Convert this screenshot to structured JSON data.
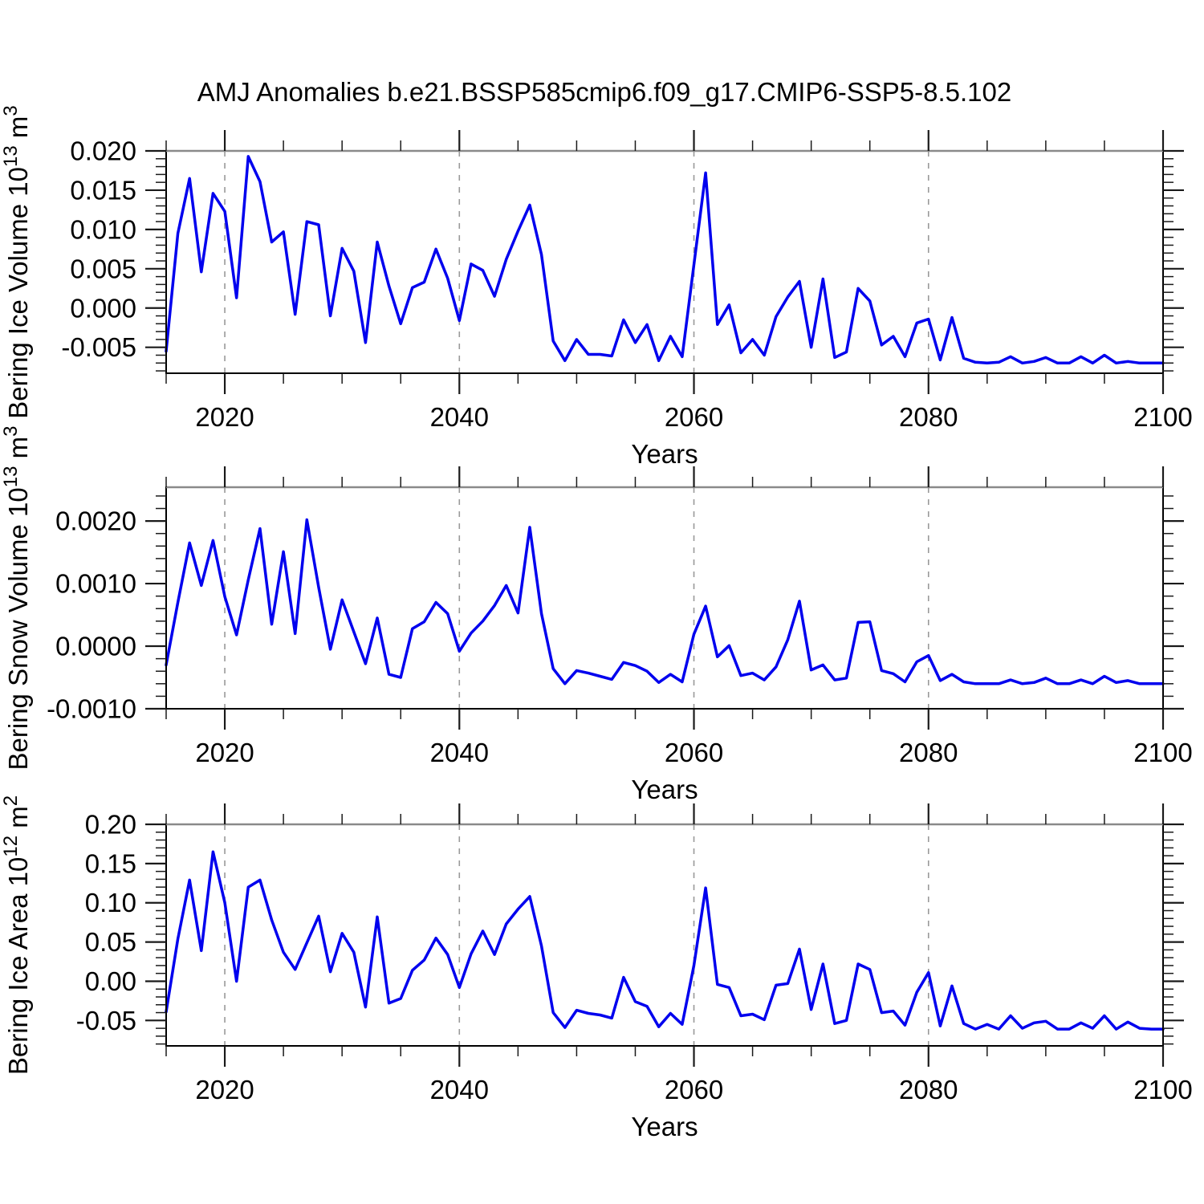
{
  "title": "AMJ Anomalies b.e21.BSSP585cmip6.f09_g17.CMIP6-SSP5-8.5.102",
  "chart_data": {
    "type": "line",
    "title": "AMJ Anomalies b.e21.BSSP585cmip6.f09_g17.CMIP6-SSP5-8.5.102",
    "xlabel": "Years",
    "xlim": [
      2015,
      2100
    ],
    "x_major_ticks": [
      2020,
      2040,
      2060,
      2080,
      2100
    ],
    "x_major_labels": [
      "2020",
      "2040",
      "2060",
      "2080",
      "2100"
    ],
    "x_minor_step": 5,
    "grid_x": [
      2020,
      2040,
      2060,
      2080
    ],
    "grid_style": "dashed",
    "line_color": "#0000ee",
    "grid_color": "#999999",
    "frame_color": "#000000",
    "top_spine_color": "#8a8a8a",
    "x": [
      2015,
      2016,
      2017,
      2018,
      2019,
      2020,
      2021,
      2022,
      2023,
      2024,
      2025,
      2026,
      2027,
      2028,
      2029,
      2030,
      2031,
      2032,
      2033,
      2034,
      2035,
      2036,
      2037,
      2038,
      2039,
      2040,
      2041,
      2042,
      2043,
      2044,
      2045,
      2046,
      2047,
      2048,
      2049,
      2050,
      2051,
      2052,
      2053,
      2054,
      2055,
      2056,
      2057,
      2058,
      2059,
      2060,
      2061,
      2062,
      2063,
      2064,
      2065,
      2066,
      2067,
      2068,
      2069,
      2070,
      2071,
      2072,
      2073,
      2074,
      2075,
      2076,
      2077,
      2078,
      2079,
      2080,
      2081,
      2082,
      2083,
      2084,
      2085,
      2086,
      2087,
      2088,
      2089,
      2090,
      2091,
      2092,
      2093,
      2094,
      2095,
      2096,
      2097,
      2098,
      2099,
      2100
    ],
    "panels": [
      {
        "id": "bering-ice-volume",
        "ylabel": "Bering Ice Volume 10^13 m^3",
        "ylabel_parts": [
          [
            "t",
            "Bering Ice Volume 10"
          ],
          [
            "s",
            "13"
          ],
          [
            "t",
            " m"
          ],
          [
            "s",
            "3"
          ]
        ],
        "ylim": [
          -0.0083,
          0.02
        ],
        "y_major_ticks": [
          0.02,
          0.015,
          0.01,
          0.005,
          0.0,
          -0.005
        ],
        "y_major_labels": [
          "0.020",
          "0.015",
          "0.010",
          "0.005",
          "0.000",
          "-0.005"
        ],
        "y_minor_step": 0.001,
        "values": [
          -0.0055,
          0.0095,
          0.0165,
          0.0046,
          0.0146,
          0.0123,
          0.0013,
          0.0193,
          0.0161,
          0.0084,
          0.0097,
          -0.0008,
          0.011,
          0.0106,
          -0.001,
          0.0076,
          0.0047,
          -0.0044,
          0.0084,
          0.0028,
          -0.002,
          0.0026,
          0.0033,
          0.0075,
          0.0038,
          -0.0016,
          0.0056,
          0.0048,
          0.0015,
          0.0062,
          0.0098,
          0.0131,
          0.0068,
          -0.0042,
          -0.0067,
          -0.004,
          -0.0059,
          -0.0059,
          -0.0061,
          -0.0015,
          -0.0044,
          -0.0021,
          -0.0067,
          -0.0036,
          -0.0062,
          0.0055,
          0.0172,
          -0.0021,
          0.0004,
          -0.0057,
          -0.004,
          -0.006,
          -0.0011,
          0.0014,
          0.0034,
          -0.005,
          0.0037,
          -0.0063,
          -0.0056,
          0.0025,
          0.0009,
          -0.0047,
          -0.0036,
          -0.0062,
          -0.0019,
          -0.0014,
          -0.0066,
          -0.0012,
          -0.0064,
          -0.0069,
          -0.007,
          -0.0069,
          -0.0062,
          -0.007,
          -0.0068,
          -0.0063,
          -0.007,
          -0.007,
          -0.0062,
          -0.007,
          -0.006,
          -0.007,
          -0.0068,
          -0.007,
          -0.007,
          -0.007
        ]
      },
      {
        "id": "bering-snow-volume",
        "ylabel": "Bering Snow Volume 10^13 m^3",
        "ylabel_parts": [
          [
            "t",
            "Bering Snow Volume 10"
          ],
          [
            "s",
            "13"
          ],
          [
            "t",
            " m"
          ],
          [
            "s",
            "3"
          ]
        ],
        "ylim": [
          -0.001,
          0.00254
        ],
        "y_major_ticks": [
          0.002,
          0.001,
          0.0,
          -0.001
        ],
        "y_major_labels": [
          "0.0020",
          "0.0010",
          "0.0000",
          "-0.0010"
        ],
        "y_minor_step": 0.0002,
        "values": [
          -0.0003,
          0.0007,
          0.00165,
          0.00097,
          0.00169,
          0.00079,
          0.00018,
          0.00106,
          0.00188,
          0.00035,
          0.00151,
          0.0002,
          0.00202,
          0.00094,
          -5e-05,
          0.00074,
          0.00023,
          -0.00028,
          0.00045,
          -0.00045,
          -0.0005,
          0.00028,
          0.00039,
          0.0007,
          0.00052,
          -8e-05,
          0.00021,
          0.0004,
          0.00065,
          0.00097,
          0.00053,
          0.0019,
          0.00052,
          -0.00036,
          -0.0006,
          -0.00039,
          -0.00043,
          -0.00048,
          -0.00053,
          -0.00026,
          -0.00031,
          -0.0004,
          -0.00058,
          -0.00045,
          -0.00057,
          0.00019,
          0.00064,
          -0.00017,
          1e-05,
          -0.00047,
          -0.00043,
          -0.00054,
          -0.00033,
          0.0001,
          0.00072,
          -0.00038,
          -0.0003,
          -0.00054,
          -0.00051,
          0.00038,
          0.00039,
          -0.00039,
          -0.00044,
          -0.00057,
          -0.00025,
          -0.00015,
          -0.00055,
          -0.00045,
          -0.00057,
          -0.0006,
          -0.0006,
          -0.0006,
          -0.00054,
          -0.0006,
          -0.00058,
          -0.00051,
          -0.0006,
          -0.0006,
          -0.00054,
          -0.0006,
          -0.00048,
          -0.00058,
          -0.00055,
          -0.0006,
          -0.0006,
          -0.0006
        ]
      },
      {
        "id": "bering-ice-area",
        "ylabel": "Bering Ice Area 10^12 m^2",
        "ylabel_parts": [
          [
            "t",
            "Bering Ice Area 10"
          ],
          [
            "s",
            "12"
          ],
          [
            "t",
            " m"
          ],
          [
            "s",
            "2"
          ]
        ],
        "ylim": [
          -0.0824,
          0.2
        ],
        "y_major_ticks": [
          0.2,
          0.15,
          0.1,
          0.05,
          0.0,
          -0.05
        ],
        "y_major_labels": [
          "0.20",
          "0.15",
          "0.10",
          "0.05",
          "0.00",
          "-0.05"
        ],
        "y_minor_step": 0.01,
        "values": [
          -0.039,
          0.054,
          0.129,
          0.039,
          0.165,
          0.1,
          0.0,
          0.12,
          0.129,
          0.078,
          0.037,
          0.015,
          0.049,
          0.083,
          0.012,
          0.061,
          0.037,
          -0.033,
          0.082,
          -0.028,
          -0.022,
          0.014,
          0.027,
          0.055,
          0.034,
          -0.008,
          0.035,
          0.064,
          0.034,
          0.073,
          0.092,
          0.108,
          0.045,
          -0.04,
          -0.059,
          -0.037,
          -0.041,
          -0.043,
          -0.047,
          0.005,
          -0.026,
          -0.032,
          -0.058,
          -0.041,
          -0.055,
          0.02,
          0.119,
          -0.004,
          -0.008,
          -0.044,
          -0.042,
          -0.049,
          -0.005,
          -0.003,
          0.041,
          -0.036,
          0.022,
          -0.054,
          -0.05,
          0.022,
          0.015,
          -0.04,
          -0.038,
          -0.056,
          -0.014,
          0.011,
          -0.057,
          -0.006,
          -0.054,
          -0.061,
          -0.055,
          -0.061,
          -0.044,
          -0.06,
          -0.053,
          -0.051,
          -0.061,
          -0.061,
          -0.053,
          -0.06,
          -0.044,
          -0.061,
          -0.052,
          -0.06,
          -0.061,
          -0.061
        ]
      }
    ]
  }
}
